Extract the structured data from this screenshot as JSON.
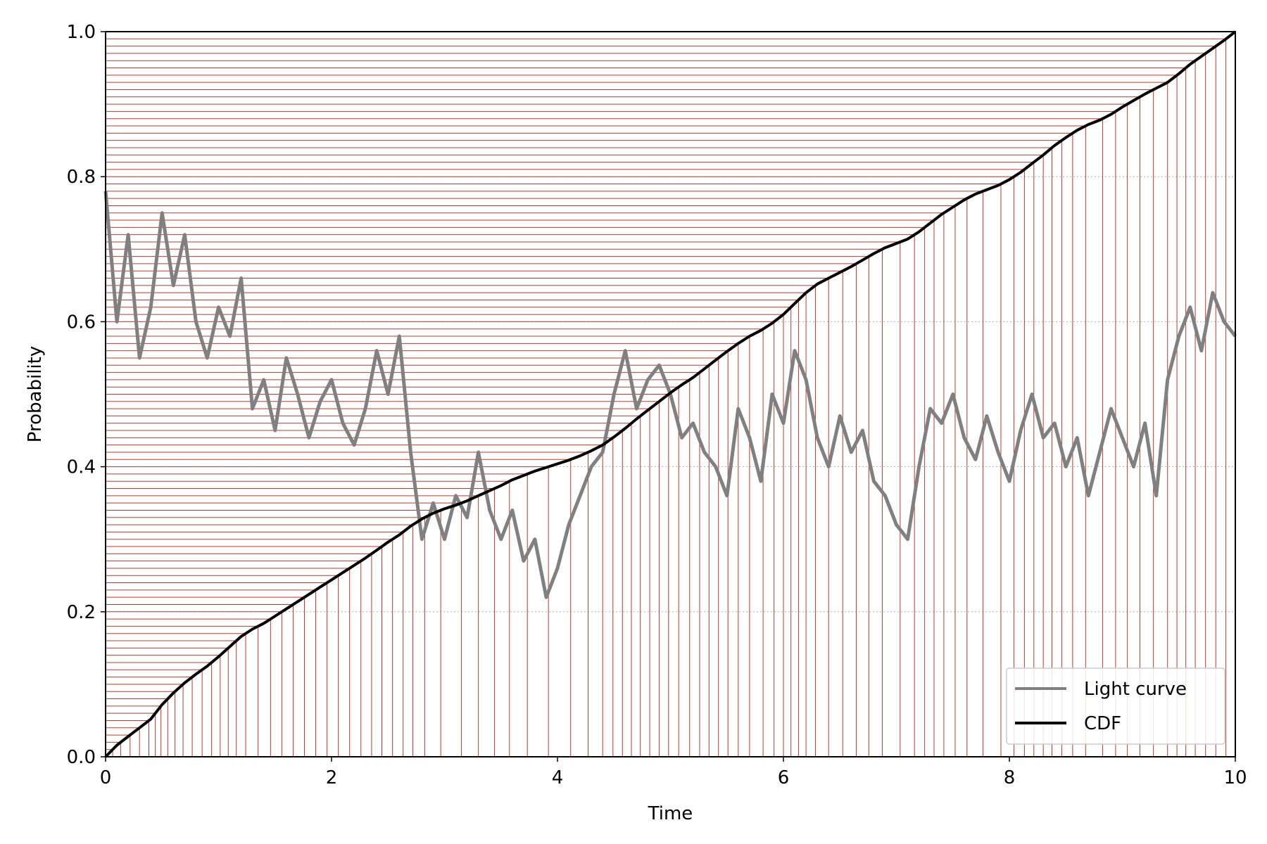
{
  "chart_data": {
    "type": "line",
    "title": "",
    "xlabel": "Time",
    "ylabel": "Probability",
    "xlim": [
      0,
      10
    ],
    "ylim": [
      0,
      1
    ],
    "xticks": [
      0,
      2,
      4,
      6,
      8,
      10
    ],
    "yticks": [
      0.0,
      0.2,
      0.4,
      0.6,
      0.8,
      1.0
    ],
    "xtick_labels": [
      "0",
      "2",
      "4",
      "6",
      "8",
      "10"
    ],
    "ytick_labels": [
      "0.0",
      "0.2",
      "0.4",
      "0.6",
      "0.8",
      "1.0"
    ],
    "grid": true,
    "legend_position": "lower right",
    "equal_probability_bins": 100,
    "colors": {
      "light_curve": "#808080",
      "cdf": "#000000",
      "bin_edges": "#c0392b",
      "grid": "#b0b0b0"
    },
    "series": [
      {
        "name": "Light curve",
        "x": [
          0.0,
          0.1,
          0.2,
          0.3,
          0.4,
          0.5,
          0.6,
          0.7,
          0.8,
          0.9,
          1.0,
          1.1,
          1.2,
          1.3,
          1.4,
          1.5,
          1.6,
          1.7,
          1.8,
          1.9,
          2.0,
          2.1,
          2.2,
          2.3,
          2.4,
          2.5,
          2.6,
          2.7,
          2.8,
          2.9,
          3.0,
          3.1,
          3.2,
          3.3,
          3.4,
          3.5,
          3.6,
          3.7,
          3.8,
          3.9,
          4.0,
          4.1,
          4.2,
          4.3,
          4.4,
          4.5,
          4.6,
          4.7,
          4.8,
          4.9,
          5.0,
          5.1,
          5.2,
          5.3,
          5.4,
          5.5,
          5.6,
          5.7,
          5.8,
          5.9,
          6.0,
          6.1,
          6.2,
          6.3,
          6.4,
          6.5,
          6.6,
          6.7,
          6.8,
          6.9,
          7.0,
          7.1,
          7.2,
          7.3,
          7.4,
          7.5,
          7.6,
          7.7,
          7.8,
          7.9,
          8.0,
          8.1,
          8.2,
          8.3,
          8.4,
          8.5,
          8.6,
          8.7,
          8.8,
          8.9,
          9.0,
          9.1,
          9.2,
          9.3,
          9.4,
          9.5,
          9.6,
          9.7,
          9.8,
          9.9,
          10.0
        ],
        "y": [
          0.78,
          0.6,
          0.72,
          0.55,
          0.62,
          0.75,
          0.65,
          0.72,
          0.6,
          0.55,
          0.62,
          0.58,
          0.66,
          0.48,
          0.52,
          0.45,
          0.55,
          0.5,
          0.44,
          0.49,
          0.52,
          0.46,
          0.43,
          0.48,
          0.56,
          0.5,
          0.58,
          0.42,
          0.3,
          0.35,
          0.3,
          0.36,
          0.33,
          0.42,
          0.34,
          0.3,
          0.34,
          0.27,
          0.3,
          0.22,
          0.26,
          0.32,
          0.36,
          0.4,
          0.42,
          0.5,
          0.56,
          0.48,
          0.52,
          0.54,
          0.5,
          0.44,
          0.46,
          0.42,
          0.4,
          0.36,
          0.48,
          0.44,
          0.38,
          0.5,
          0.46,
          0.56,
          0.52,
          0.44,
          0.4,
          0.47,
          0.42,
          0.45,
          0.38,
          0.36,
          0.32,
          0.3,
          0.4,
          0.48,
          0.46,
          0.5,
          0.44,
          0.41,
          0.47,
          0.42,
          0.38,
          0.45,
          0.5,
          0.44,
          0.46,
          0.4,
          0.44,
          0.36,
          0.42,
          0.48,
          0.44,
          0.4,
          0.46,
          0.36,
          0.52,
          0.58,
          0.62,
          0.56,
          0.64,
          0.6,
          0.58
        ]
      },
      {
        "name": "CDF",
        "x": [
          0.0,
          0.1,
          0.2,
          0.3,
          0.4,
          0.5,
          0.6,
          0.7,
          0.8,
          0.9,
          1.0,
          1.1,
          1.2,
          1.3,
          1.4,
          1.5,
          1.6,
          1.7,
          1.8,
          1.9,
          2.0,
          2.1,
          2.2,
          2.3,
          2.4,
          2.5,
          2.6,
          2.7,
          2.8,
          2.9,
          3.0,
          3.1,
          3.2,
          3.3,
          3.4,
          3.5,
          3.6,
          3.7,
          3.8,
          3.9,
          4.0,
          4.1,
          4.2,
          4.3,
          4.4,
          4.5,
          4.6,
          4.7,
          4.8,
          4.9,
          5.0,
          5.1,
          5.2,
          5.3,
          5.4,
          5.5,
          5.6,
          5.7,
          5.8,
          5.9,
          6.0,
          6.1,
          6.2,
          6.3,
          6.4,
          6.5,
          6.6,
          6.7,
          6.8,
          6.9,
          7.0,
          7.1,
          7.2,
          7.3,
          7.4,
          7.5,
          7.6,
          7.7,
          7.8,
          7.9,
          8.0,
          8.1,
          8.2,
          8.3,
          8.4,
          8.5,
          8.6,
          8.7,
          8.8,
          8.9,
          9.0,
          9.1,
          9.2,
          9.3,
          9.4,
          9.5,
          9.6,
          9.7,
          9.8,
          9.9,
          10.0
        ],
        "y": [
          0.0,
          0.016,
          0.028,
          0.04,
          0.052,
          0.072,
          0.088,
          0.102,
          0.114,
          0.125,
          0.138,
          0.152,
          0.166,
          0.176,
          0.184,
          0.194,
          0.204,
          0.214,
          0.224,
          0.234,
          0.244,
          0.254,
          0.264,
          0.274,
          0.285,
          0.296,
          0.306,
          0.318,
          0.328,
          0.336,
          0.342,
          0.347,
          0.353,
          0.36,
          0.367,
          0.374,
          0.382,
          0.388,
          0.394,
          0.399,
          0.404,
          0.409,
          0.415,
          0.422,
          0.43,
          0.441,
          0.453,
          0.466,
          0.478,
          0.49,
          0.502,
          0.513,
          0.523,
          0.535,
          0.547,
          0.559,
          0.57,
          0.58,
          0.588,
          0.598,
          0.61,
          0.625,
          0.64,
          0.652,
          0.66,
          0.668,
          0.676,
          0.685,
          0.694,
          0.702,
          0.708,
          0.714,
          0.724,
          0.736,
          0.748,
          0.758,
          0.768,
          0.776,
          0.782,
          0.788,
          0.796,
          0.806,
          0.818,
          0.83,
          0.843,
          0.854,
          0.864,
          0.872,
          0.878,
          0.886,
          0.896,
          0.905,
          0.914,
          0.922,
          0.93,
          0.942,
          0.955,
          0.966,
          0.977,
          0.988,
          1.0
        ]
      }
    ]
  }
}
